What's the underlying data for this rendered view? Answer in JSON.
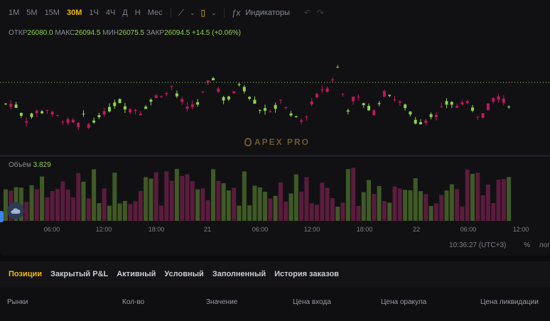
{
  "toolbar": {
    "timeframes": [
      "1M",
      "5M",
      "15M",
      "30M",
      "1Ч",
      "4Ч",
      "Д",
      "Н",
      "Мес"
    ],
    "active_timeframe": "30M",
    "indicators_label": "Индикаторы"
  },
  "ohlc": {
    "open_label": "ОТКР",
    "open": "26080.0",
    "high_label": "МАКС",
    "high": "26094.5",
    "low_label": "МИН",
    "low": "26075.5",
    "close_label": "ЗАКР",
    "close": "26094.5",
    "change": "+14.5 (+0.06%)"
  },
  "volume": {
    "label": "Объём",
    "value": "3.829"
  },
  "watermark": "APEX PRO",
  "time_axis": [
    "06:00",
    "12:00",
    "18:00",
    "21",
    "06:00",
    "12:00",
    "18:00",
    "22",
    "06:00",
    "12:00"
  ],
  "status": {
    "time": "10:36:27 (UTC+3)",
    "percent": "%",
    "log": "лог"
  },
  "tabs": [
    "Позиции",
    "Закрытый P&L",
    "Активный",
    "Условный",
    "Заполненный",
    "История заказов"
  ],
  "active_tab": "Позиции",
  "table_headers": [
    "Рынки",
    "Кол-во",
    "Значение",
    "Цена входа",
    "Цена оракула",
    "Цена ликвидации"
  ],
  "colors": {
    "up": "#8fd14f",
    "down": "#c2185b",
    "accent": "#f0b90b"
  }
}
